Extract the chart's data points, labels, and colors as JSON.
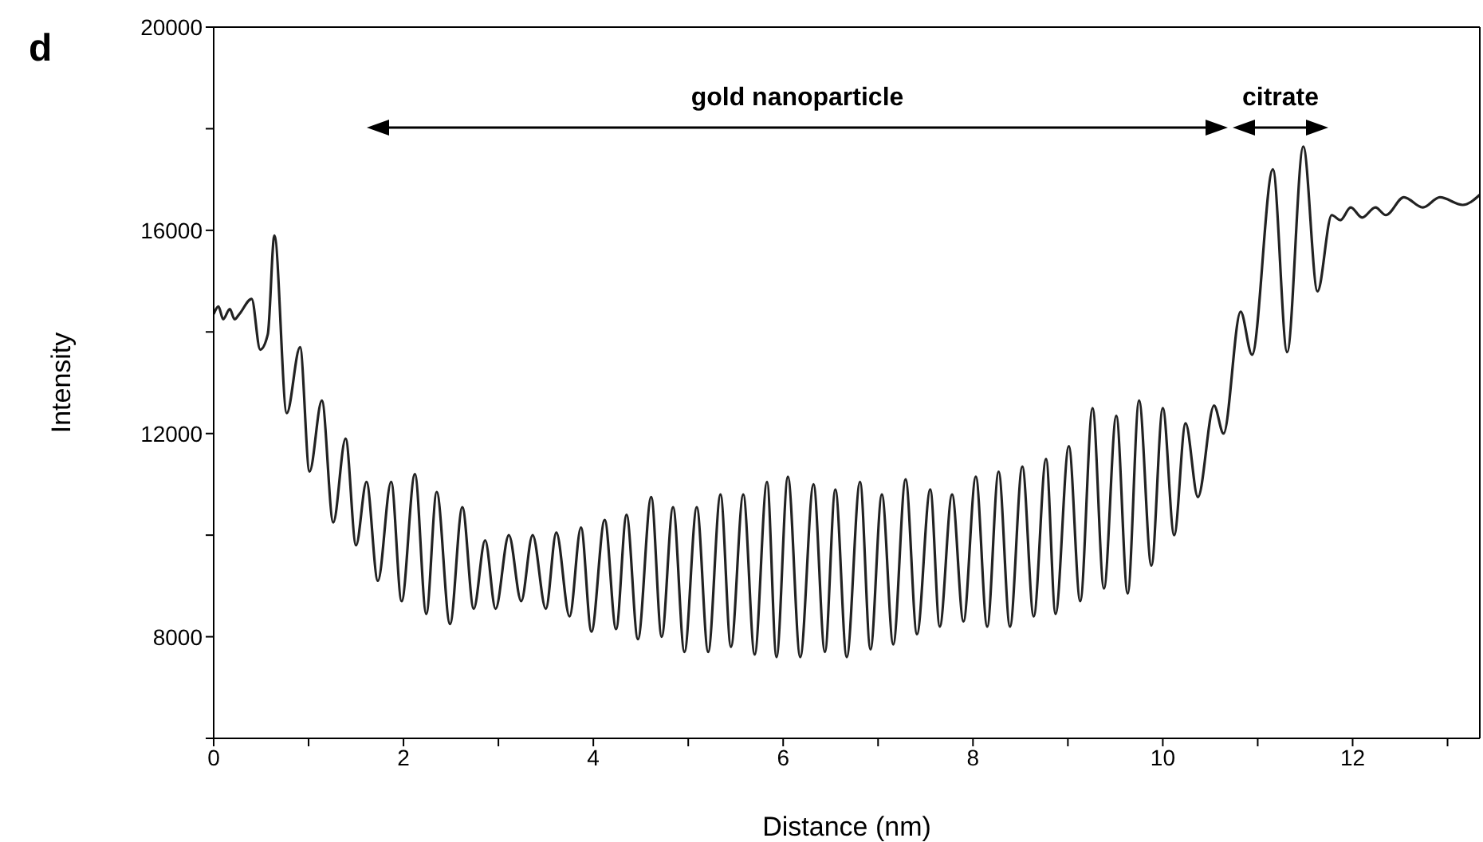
{
  "chart_data": {
    "type": "line",
    "xlabel": "Distance (nm)",
    "ylabel": "Intensity",
    "xlim": [
      0,
      13.34
    ],
    "ylim": [
      6000,
      20000
    ],
    "xticks": [
      0,
      {
        "value": 1,
        "label": null
      },
      2,
      {
        "value": 3,
        "label": null
      },
      4,
      {
        "value": 5,
        "label": null
      },
      6,
      {
        "value": 7,
        "label": null
      },
      8,
      {
        "value": 9,
        "label": null
      },
      10,
      {
        "value": 11,
        "label": null
      },
      12,
      {
        "value": 13,
        "label": null
      }
    ],
    "yticks": [
      {
        "value": 6000,
        "label": null
      },
      8000,
      {
        "value": 10000,
        "label": null
      },
      12000,
      {
        "value": 14000,
        "label": null
      },
      16000,
      {
        "value": 18000,
        "label": null
      },
      20000
    ],
    "annotations": [
      "d",
      "gold nanoparticle",
      "citrate"
    ],
    "series": [
      {
        "color": "#222222",
        "x": [
          0,
          0.05,
          0.1,
          0.17,
          0.22,
          0.27,
          0.4,
          0.49,
          0.57,
          0.64,
          0.77,
          0.91,
          1.01,
          1.14,
          1.26,
          1.39,
          1.5,
          1.61,
          1.73,
          1.87,
          1.98,
          2.12,
          2.24,
          2.35,
          2.49,
          2.62,
          2.74,
          2.86,
          2.97,
          3.11,
          3.24,
          3.36,
          3.5,
          3.61,
          3.75,
          3.87,
          3.98,
          4.12,
          4.24,
          4.35,
          4.47,
          4.61,
          4.72,
          4.84,
          4.96,
          5.09,
          5.21,
          5.34,
          5.45,
          5.58,
          5.7,
          5.83,
          5.93,
          6.05,
          6.18,
          6.32,
          6.44,
          6.55,
          6.67,
          6.81,
          6.92,
          7.04,
          7.16,
          7.29,
          7.41,
          7.55,
          7.65,
          7.78,
          7.9,
          8.03,
          8.15,
          8.27,
          8.39,
          8.52,
          8.64,
          8.77,
          8.87,
          9.01,
          9.13,
          9.26,
          9.38,
          9.51,
          9.63,
          9.75,
          9.88,
          10,
          10.12,
          10.24,
          10.37,
          10.54,
          10.64,
          10.82,
          10.94,
          11.16,
          11.31,
          11.48,
          11.63,
          11.78,
          11.87,
          11.98,
          12.1,
          12.24,
          12.35,
          12.54,
          12.74,
          12.92,
          13.16,
          13.34
        ],
        "values": [
          14350,
          14500,
          14250,
          14450,
          14250,
          14350,
          14650,
          13650,
          13950,
          15900,
          12400,
          13700,
          11250,
          12650,
          10250,
          11900,
          9800,
          11050,
          9100,
          11050,
          8700,
          11200,
          8450,
          10850,
          8250,
          10550,
          8550,
          9900,
          8550,
          10000,
          8700,
          10000,
          8550,
          10050,
          8400,
          10150,
          8100,
          10300,
          8150,
          10400,
          7950,
          10750,
          8000,
          10550,
          7700,
          10550,
          7700,
          10800,
          7800,
          10800,
          7650,
          11050,
          7600,
          11150,
          7600,
          11000,
          7700,
          10900,
          7600,
          11050,
          7750,
          10800,
          7850,
          11100,
          8050,
          10900,
          8200,
          10800,
          8300,
          11150,
          8200,
          11250,
          8200,
          11350,
          8400,
          11500,
          8450,
          11750,
          8700,
          12500,
          8950,
          12350,
          8850,
          12650,
          9400,
          12500,
          10000,
          12200,
          10750,
          12550,
          12000,
          14400,
          13550,
          17200,
          13600,
          17650,
          14800,
          16300,
          16200,
          16450,
          16250,
          16450,
          16300,
          16650,
          16450,
          16650,
          16500,
          16700
        ]
      }
    ]
  }
}
